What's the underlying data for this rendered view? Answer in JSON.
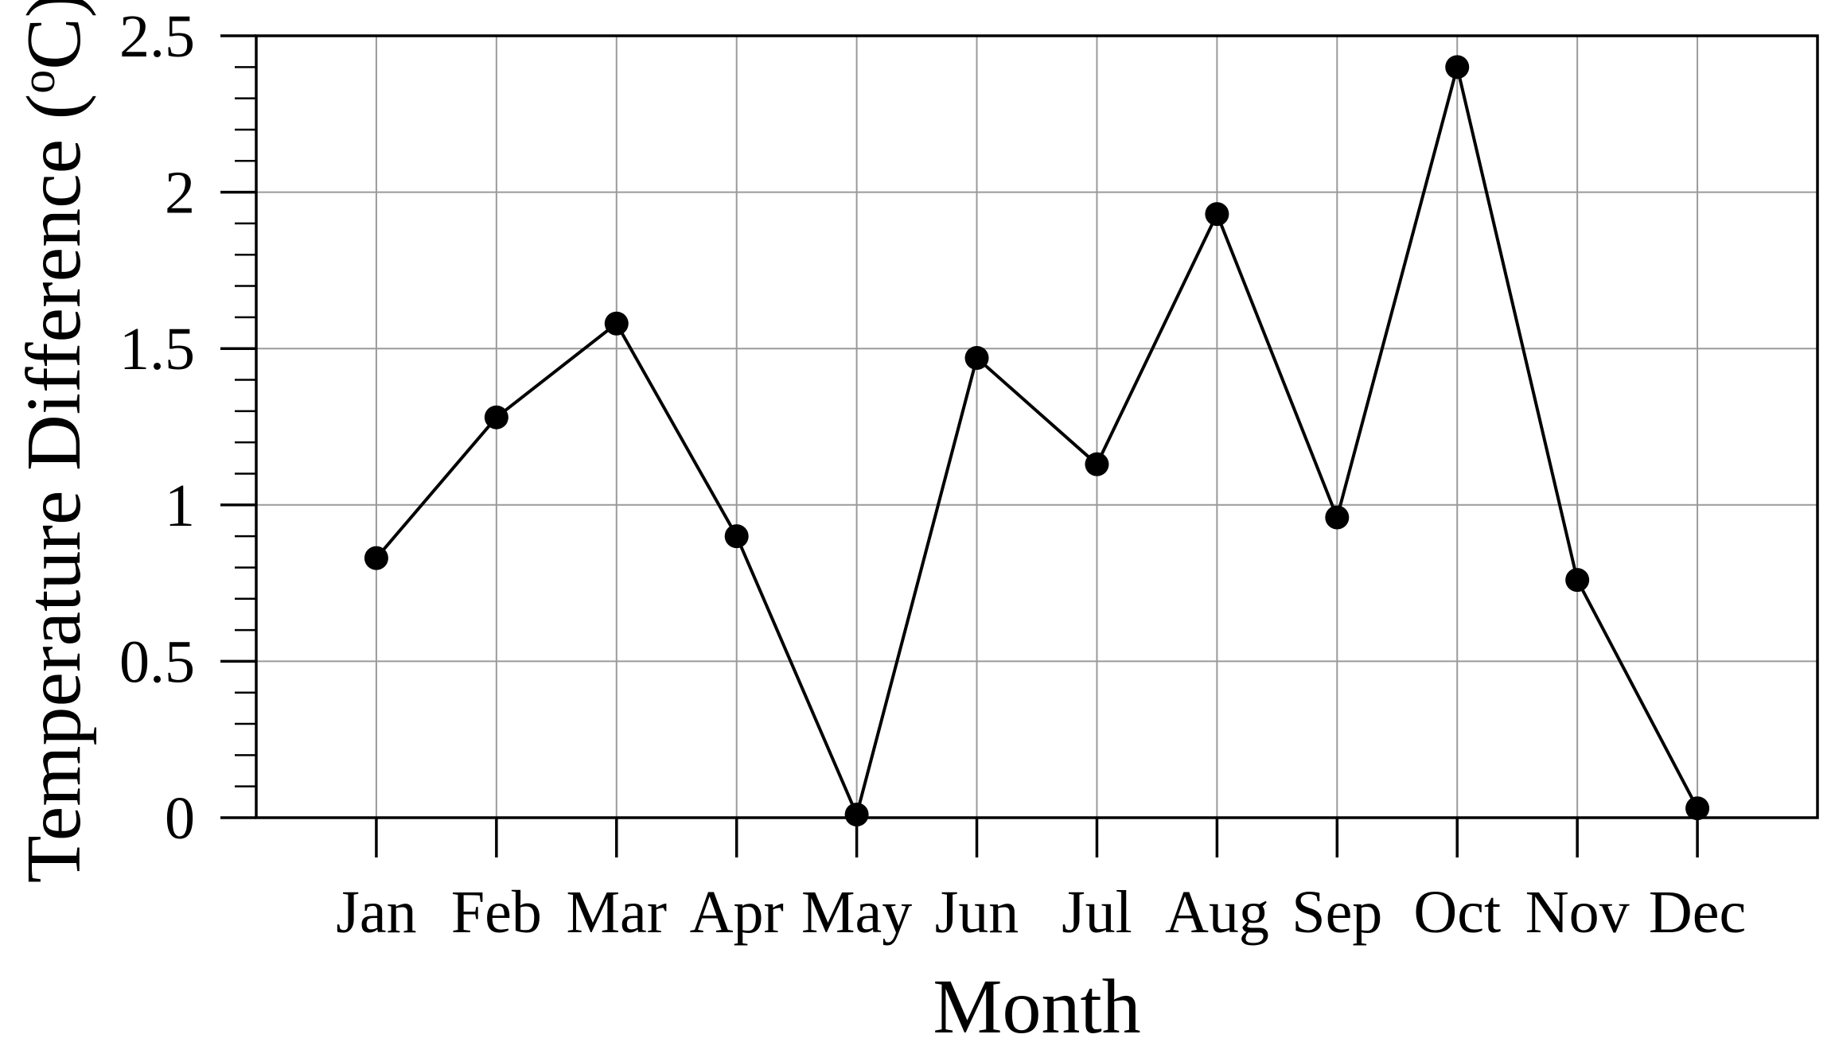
{
  "chart_data": {
    "type": "line",
    "title": "",
    "xlabel": "Month",
    "ylabel": "Temperature Difference (oC)",
    "ylabel_parts": {
      "prefix": "Temperature Difference (",
      "superscript": "o",
      "suffix": "C)"
    },
    "categories": [
      "Jan",
      "Feb",
      "Mar",
      "Apr",
      "May",
      "Jun",
      "Jul",
      "Aug",
      "Sep",
      "Oct",
      "Nov",
      "Dec"
    ],
    "series": [
      {
        "name": "Temperature Difference",
        "values": [
          0.83,
          1.28,
          1.58,
          0.9,
          0.01,
          1.47,
          1.13,
          1.93,
          0.96,
          2.4,
          0.76,
          0.03
        ]
      }
    ],
    "ylim": [
      0,
      2.5
    ],
    "y_major_step": 0.5,
    "y_minor_step": 0.1,
    "y_tick_labels": [
      "0",
      "0.5",
      "1",
      "1.5",
      "2",
      "2.5"
    ],
    "grid": true,
    "legend_position": "none",
    "marker": "filled-circle",
    "colors": {
      "line": "#000000",
      "marker": "#000000",
      "grid": "#9a9a9a",
      "axis": "#000000",
      "text": "#000000",
      "background": "#ffffff"
    }
  }
}
